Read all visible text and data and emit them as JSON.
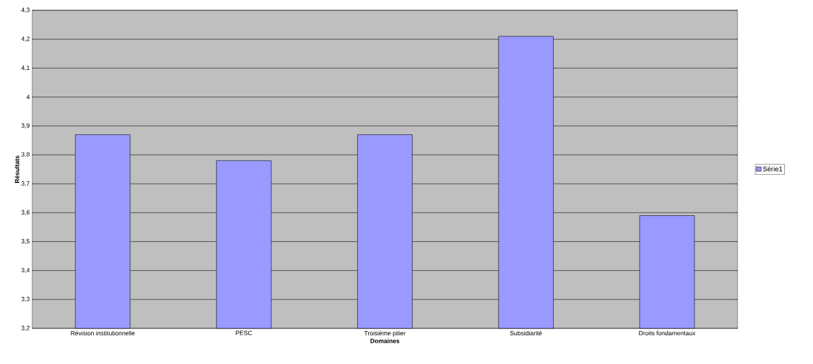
{
  "chart_data": {
    "type": "bar",
    "xlabel": "Domaines",
    "ylabel": "Résultats",
    "categories": [
      "Révision institutionnelle",
      "PESC",
      "Troisième pilier",
      "Subsidiarité",
      "Droits fondamentaux"
    ],
    "series": [
      {
        "name": "Série1",
        "color": "#9999ff",
        "values": [
          3.87,
          3.78,
          3.87,
          4.21,
          3.59
        ]
      }
    ],
    "ylim": [
      3.2,
      4.3
    ],
    "yticks": [
      {
        "value": 3.2,
        "label": "3,2"
      },
      {
        "value": 3.3,
        "label": "3,3"
      },
      {
        "value": 3.4,
        "label": "3,4"
      },
      {
        "value": 3.5,
        "label": "3,5"
      },
      {
        "value": 3.6,
        "label": "3,6"
      },
      {
        "value": 3.7,
        "label": "3,7"
      },
      {
        "value": 3.8,
        "label": "3,8"
      },
      {
        "value": 3.9,
        "label": "3,9"
      },
      {
        "value": 4,
        "label": "4"
      },
      {
        "value": 4.1,
        "label": "4,1"
      },
      {
        "value": 4.2,
        "label": "4,2"
      },
      {
        "value": 4.3,
        "label": "4,3"
      }
    ],
    "grid": "y",
    "legend": "right"
  }
}
